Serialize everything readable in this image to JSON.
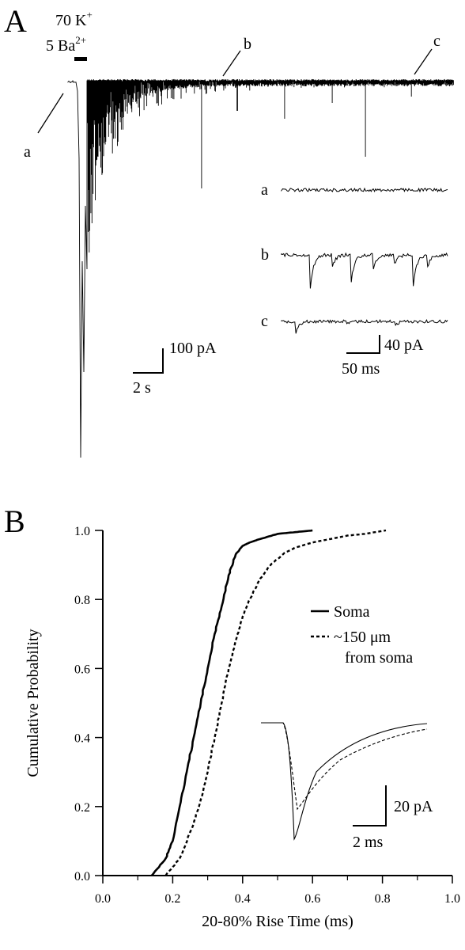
{
  "panel_a": {
    "letter": "A",
    "stim_k": "70 K",
    "stim_k_sup": "+",
    "stim_ba": "5 Ba",
    "stim_ba_sup": "2+",
    "markers": [
      "a",
      "b",
      "c"
    ],
    "scale_main": {
      "y": "100 pA",
      "x": "2 s"
    },
    "scale_inset": {
      "y": "40 pA",
      "x": "50 ms"
    }
  },
  "panel_b": {
    "letter": "B",
    "legend": {
      "soma": "Soma",
      "distal_line1": "~150 μm",
      "distal_line2": "from soma"
    },
    "inset_scale": {
      "y": "20 pA",
      "x": "2 ms"
    }
  },
  "chart_data": [
    {
      "type": "line",
      "title": "",
      "xlabel": "",
      "ylabel": "",
      "series": [],
      "annotations": [
        "70 K+",
        "5 Ba2+",
        "a",
        "b",
        "c",
        "100 pA",
        "2 s",
        "40 pA",
        "50 ms"
      ]
    },
    {
      "type": "line",
      "title": "",
      "xlabel": "20-80% Rise Time (ms)",
      "ylabel": "Cumulative Probability",
      "xlim": [
        0.0,
        1.0
      ],
      "ylim": [
        0.0,
        1.0
      ],
      "xticks": [
        "0.0",
        "0.2",
        "0.4",
        "0.6",
        "0.8",
        "1.0"
      ],
      "yticks": [
        "0.0",
        "0.2",
        "0.4",
        "0.6",
        "0.8",
        "1.0"
      ],
      "grid": false,
      "legend_position": "right",
      "series": [
        {
          "name": "Soma",
          "style": "solid",
          "x": [
            0.14,
            0.18,
            0.2,
            0.22,
            0.24,
            0.26,
            0.28,
            0.3,
            0.32,
            0.34,
            0.36,
            0.38,
            0.4,
            0.42,
            0.45,
            0.5,
            0.55,
            0.6
          ],
          "y": [
            0.0,
            0.05,
            0.1,
            0.2,
            0.3,
            0.4,
            0.5,
            0.6,
            0.7,
            0.78,
            0.87,
            0.93,
            0.955,
            0.965,
            0.975,
            0.99,
            0.995,
            1.0
          ]
        },
        {
          "name": "~150 μm from soma",
          "style": "dashed",
          "x": [
            0.18,
            0.22,
            0.26,
            0.28,
            0.3,
            0.32,
            0.34,
            0.36,
            0.38,
            0.4,
            0.42,
            0.45,
            0.48,
            0.52,
            0.55,
            0.6,
            0.65,
            0.7,
            0.75,
            0.81
          ],
          "y": [
            0.0,
            0.05,
            0.15,
            0.22,
            0.3,
            0.4,
            0.5,
            0.6,
            0.68,
            0.75,
            0.8,
            0.86,
            0.9,
            0.935,
            0.95,
            0.965,
            0.975,
            0.985,
            0.99,
            1.0
          ]
        }
      ]
    }
  ]
}
